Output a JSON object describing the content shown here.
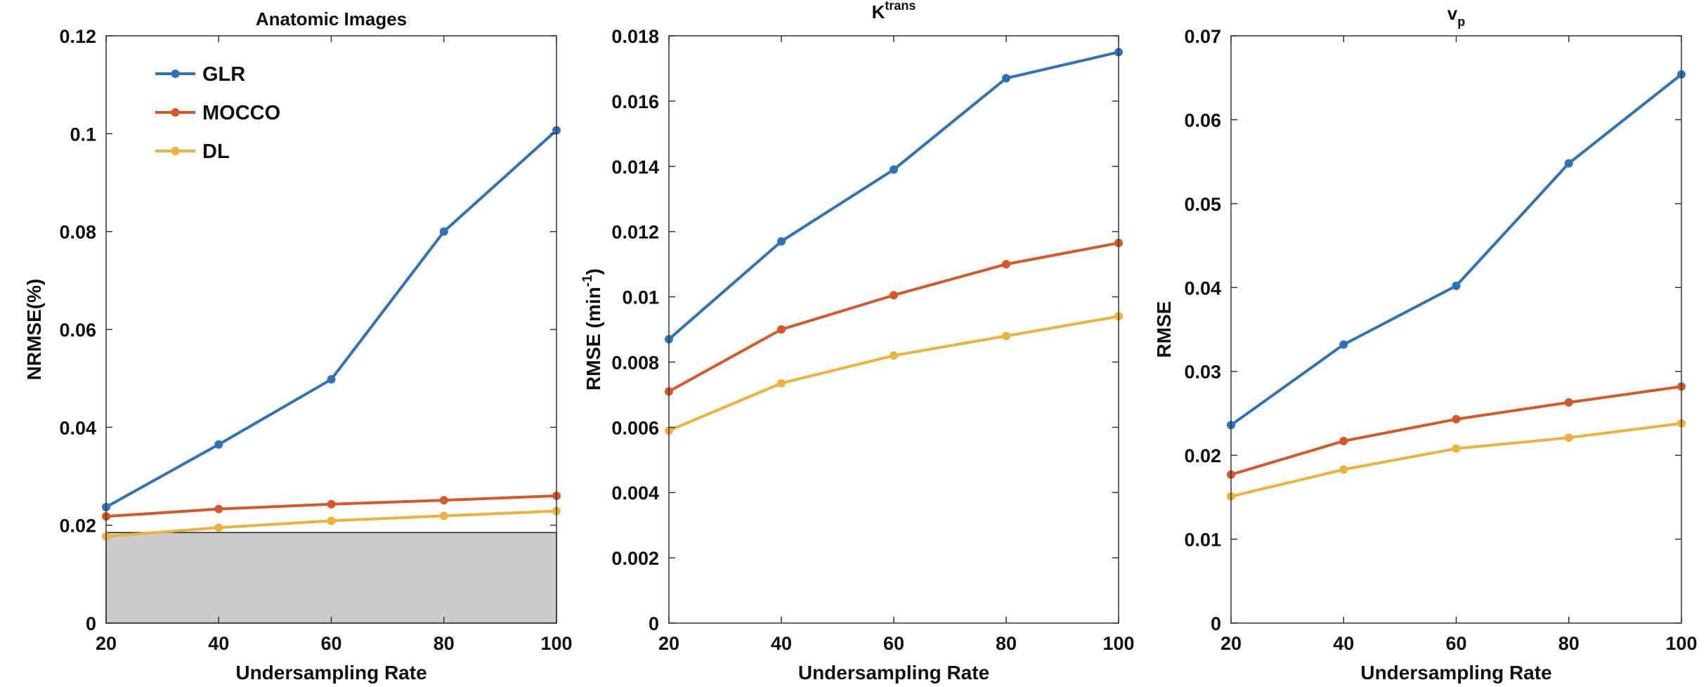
{
  "chart_data": [
    {
      "type": "line",
      "title": "Anatomic Images",
      "xlabel": "Undersampling Rate",
      "ylabel": "NRMSE(%)",
      "x": [
        20,
        40,
        60,
        80,
        100
      ],
      "xlim": [
        20,
        100
      ],
      "ylim": [
        0,
        0.12
      ],
      "xticks": [
        "20",
        "40",
        "60",
        "80",
        "100"
      ],
      "yticks": [
        "0",
        "0.02",
        "0.04",
        "0.06",
        "0.08",
        "0.1",
        "0.12"
      ],
      "yticks_values": [
        0,
        0.02,
        0.04,
        0.06,
        0.08,
        0.1,
        0.12
      ],
      "grid": false,
      "legend": "top-left",
      "shaded_region": {
        "x": [
          20,
          100
        ],
        "y": [
          0,
          0.0185
        ],
        "color": "#cccccc"
      },
      "series": [
        {
          "name": "GLR",
          "values": [
            0.0237,
            0.0365,
            0.0498,
            0.08,
            0.1007
          ]
        },
        {
          "name": "MOCCO",
          "values": [
            0.0218,
            0.0233,
            0.0243,
            0.0251,
            0.026
          ]
        },
        {
          "name": "DL",
          "values": [
            0.0177,
            0.0195,
            0.0209,
            0.0219,
            0.0229
          ]
        }
      ]
    },
    {
      "type": "line",
      "title": "K",
      "title_superscript": "trans",
      "xlabel": "Undersampling Rate",
      "ylabel": "RMSE (min",
      "ylabel_superscript": "-1",
      "ylabel_suffix": ")",
      "x": [
        20,
        40,
        60,
        80,
        100
      ],
      "xlim": [
        20,
        100
      ],
      "ylim": [
        0,
        0.018
      ],
      "xticks": [
        "20",
        "40",
        "60",
        "80",
        "100"
      ],
      "yticks": [
        "0",
        "0.002",
        "0.004",
        "0.006",
        "0.008",
        "0.01",
        "0.012",
        "0.014",
        "0.016",
        "0.018"
      ],
      "yticks_values": [
        0,
        0.002,
        0.004,
        0.006,
        0.008,
        0.01,
        0.012,
        0.014,
        0.016,
        0.018
      ],
      "grid": false,
      "series": [
        {
          "name": "GLR",
          "values": [
            0.0087,
            0.0117,
            0.0139,
            0.0167,
            0.0175
          ]
        },
        {
          "name": "MOCCO",
          "values": [
            0.0071,
            0.009,
            0.01005,
            0.011,
            0.01165
          ]
        },
        {
          "name": "DL",
          "values": [
            0.0059,
            0.00735,
            0.0082,
            0.0088,
            0.0094
          ]
        }
      ]
    },
    {
      "type": "line",
      "title": "v",
      "title_subscript": "p",
      "xlabel": "Undersampling Rate",
      "ylabel": "RMSE",
      "x": [
        20,
        40,
        60,
        80,
        100
      ],
      "xlim": [
        20,
        100
      ],
      "ylim": [
        0,
        0.07
      ],
      "xticks": [
        "20",
        "40",
        "60",
        "80",
        "100"
      ],
      "yticks": [
        "0",
        "0.01",
        "0.02",
        "0.03",
        "0.04",
        "0.05",
        "0.06",
        "0.07"
      ],
      "yticks_values": [
        0,
        0.01,
        0.02,
        0.03,
        0.04,
        0.05,
        0.06,
        0.07
      ],
      "grid": false,
      "series": [
        {
          "name": "GLR",
          "values": [
            0.0236,
            0.0332,
            0.0402,
            0.0548,
            0.0654
          ]
        },
        {
          "name": "MOCCO",
          "values": [
            0.0177,
            0.0217,
            0.0243,
            0.0263,
            0.0282
          ]
        },
        {
          "name": "DL",
          "values": [
            0.0151,
            0.0183,
            0.0208,
            0.0221,
            0.0238
          ]
        }
      ]
    }
  ],
  "colors": {
    "GLR": "#2f72b8",
    "MOCCO": "#d5582a",
    "DL": "#ecb23c",
    "shade": "#cccccc",
    "axis": "#333333"
  }
}
